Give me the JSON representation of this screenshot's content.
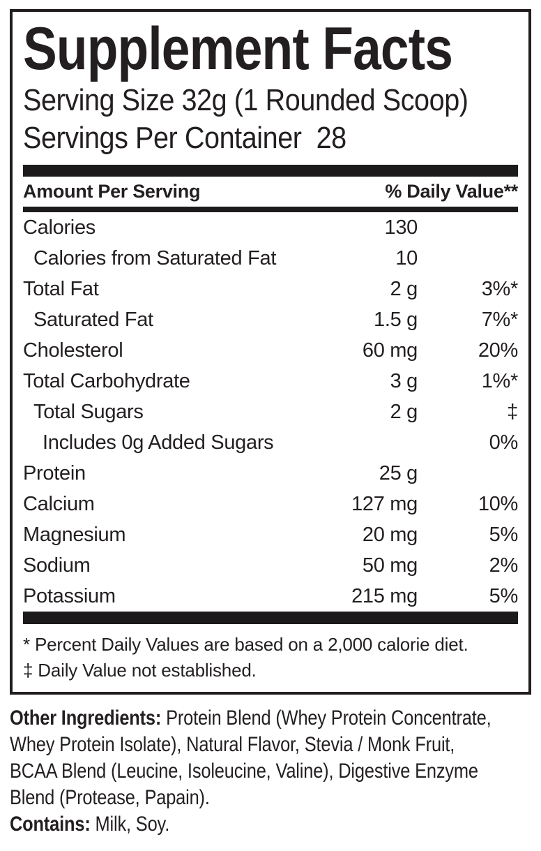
{
  "panel": {
    "title": "Supplement Facts",
    "serving_size": "Serving Size 32g (1 Rounded Scoop)",
    "servings_per_container": "Servings Per Container  28",
    "header": {
      "left": "Amount Per Serving",
      "right": "% Daily Value**"
    },
    "footnotes": [
      "* Percent Daily Values are based on a 2,000 calorie diet.",
      "‡ Daily Value not established."
    ]
  },
  "table": {
    "rows": [
      {
        "name": "Calories",
        "amount": "130",
        "dv": "",
        "indent": 0
      },
      {
        "name": "Calories from Saturated Fat",
        "amount": "10",
        "dv": "",
        "indent": 1
      },
      {
        "name": "Total Fat",
        "amount": "2 g",
        "dv": "3%*",
        "indent": 0
      },
      {
        "name": "Saturated Fat",
        "amount": "1.5 g",
        "dv": "7%*",
        "indent": 1
      },
      {
        "name": "Cholesterol",
        "amount": "60 mg",
        "dv": "20%",
        "indent": 0
      },
      {
        "name": "Total Carbohydrate",
        "amount": "3 g",
        "dv": "1%*",
        "indent": 0
      },
      {
        "name": "Total Sugars",
        "amount": "2 g",
        "dv": "‡",
        "indent": 1
      },
      {
        "name": "Includes 0g Added Sugars",
        "amount": "",
        "dv": "0%",
        "indent": 2
      },
      {
        "name": "Protein",
        "amount": "25 g",
        "dv": "",
        "indent": 0
      },
      {
        "name": "Calcium",
        "amount": "127 mg",
        "dv": "10%",
        "indent": 0
      },
      {
        "name": "Magnesium",
        "amount": "20 mg",
        "dv": "5%",
        "indent": 0
      },
      {
        "name": "Sodium",
        "amount": "50 mg",
        "dv": "2%",
        "indent": 0
      },
      {
        "name": "Potassium",
        "amount": "215 mg",
        "dv": "5%",
        "indent": 0
      }
    ]
  },
  "other_ingredients": {
    "label": "Other Ingredients:",
    "text": " Protein Blend (Whey Protein Concentrate,\nWhey Protein Isolate), Natural Flavor, Stevia / Monk Fruit,\nBCAA Blend (Leucine, Isoleucine, Valine), Digestive Enzyme\nBlend (Protease, Papain)."
  },
  "contains": {
    "label": "Contains:",
    "text": " Milk, Soy."
  },
  "colors": {
    "ink": "#231f20",
    "background": "#ffffff"
  }
}
